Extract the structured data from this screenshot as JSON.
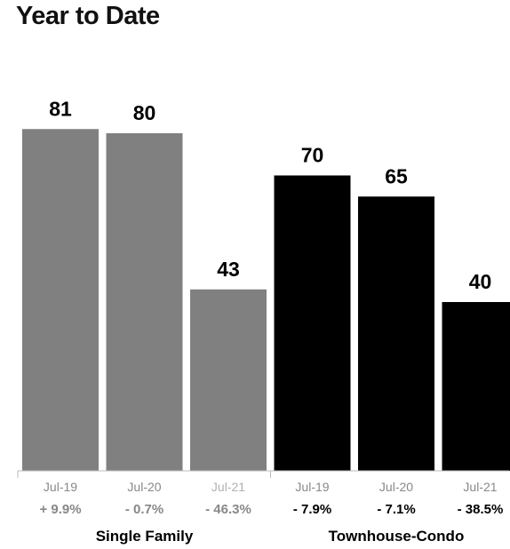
{
  "chart_data": {
    "type": "bar",
    "title": "Year to Date",
    "ylim": [
      0,
      100
    ],
    "grid": false,
    "groups": [
      {
        "name": "Single Family",
        "color": "#808080",
        "bars": [
          {
            "category": "Jul-19",
            "value": 81,
            "change": "+ 9.9%"
          },
          {
            "category": "Jul-20",
            "value": 80,
            "change": "- 0.7%"
          },
          {
            "category": "Jul-21",
            "value": 43,
            "change": "- 46.3%"
          }
        ]
      },
      {
        "name": "Townhouse-Condo",
        "color": "#000000",
        "bars": [
          {
            "category": "Jul-19",
            "value": 70,
            "change": "- 7.9%"
          },
          {
            "category": "Jul-20",
            "value": 65,
            "change": "- 7.1%"
          },
          {
            "category": "Jul-21",
            "value": 40,
            "change": "- 38.5%"
          }
        ]
      }
    ]
  },
  "colors": {
    "tick_label": "#888888",
    "tick_label_current": "#b0b0b0",
    "change_single_family": "#888888",
    "change_townhouse": "#000000",
    "axis": "#bbbbbb"
  }
}
